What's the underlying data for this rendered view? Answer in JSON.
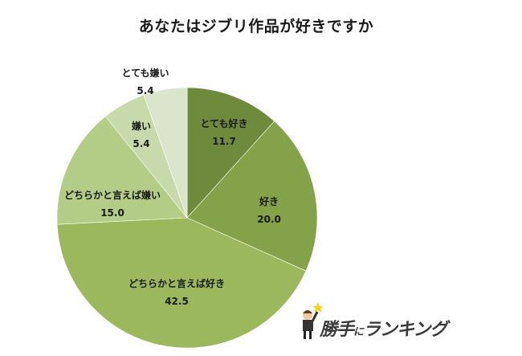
{
  "title": "あなたはジブリ作品が好きですか",
  "chart_data": {
    "type": "pie",
    "title": "あなたはジブリ作品が好きですか",
    "categories": [
      "とても好き",
      "好き",
      "どちらかと言えば好き",
      "どちらかと言えば嫌い",
      "嫌い",
      "とても嫌い"
    ],
    "values": [
      11.7,
      20.0,
      42.5,
      15.0,
      5.4,
      5.4
    ],
    "colors": [
      "#6e8b3d",
      "#84a24a",
      "#9bb85c",
      "#b3cc86",
      "#c8d9ab",
      "#dbe5cc"
    ],
    "start_angle": "12 o'clock",
    "direction": "clockwise",
    "legend": "none (data labels inside slices)"
  },
  "labels": [
    {
      "name": "とても好き",
      "value": "11.7"
    },
    {
      "name": "好き",
      "value": "20.0"
    },
    {
      "name": "どちらかと言えば好き",
      "value": "42.5"
    },
    {
      "name": "どちらかと言えば嫌い",
      "value": "15.0"
    },
    {
      "name": "嫌い",
      "value": "5.4"
    },
    {
      "name": "とても嫌い",
      "value": "5.4"
    }
  ],
  "logo": {
    "part1": "勝手",
    "part2": "に",
    "part3": "ランキング"
  }
}
